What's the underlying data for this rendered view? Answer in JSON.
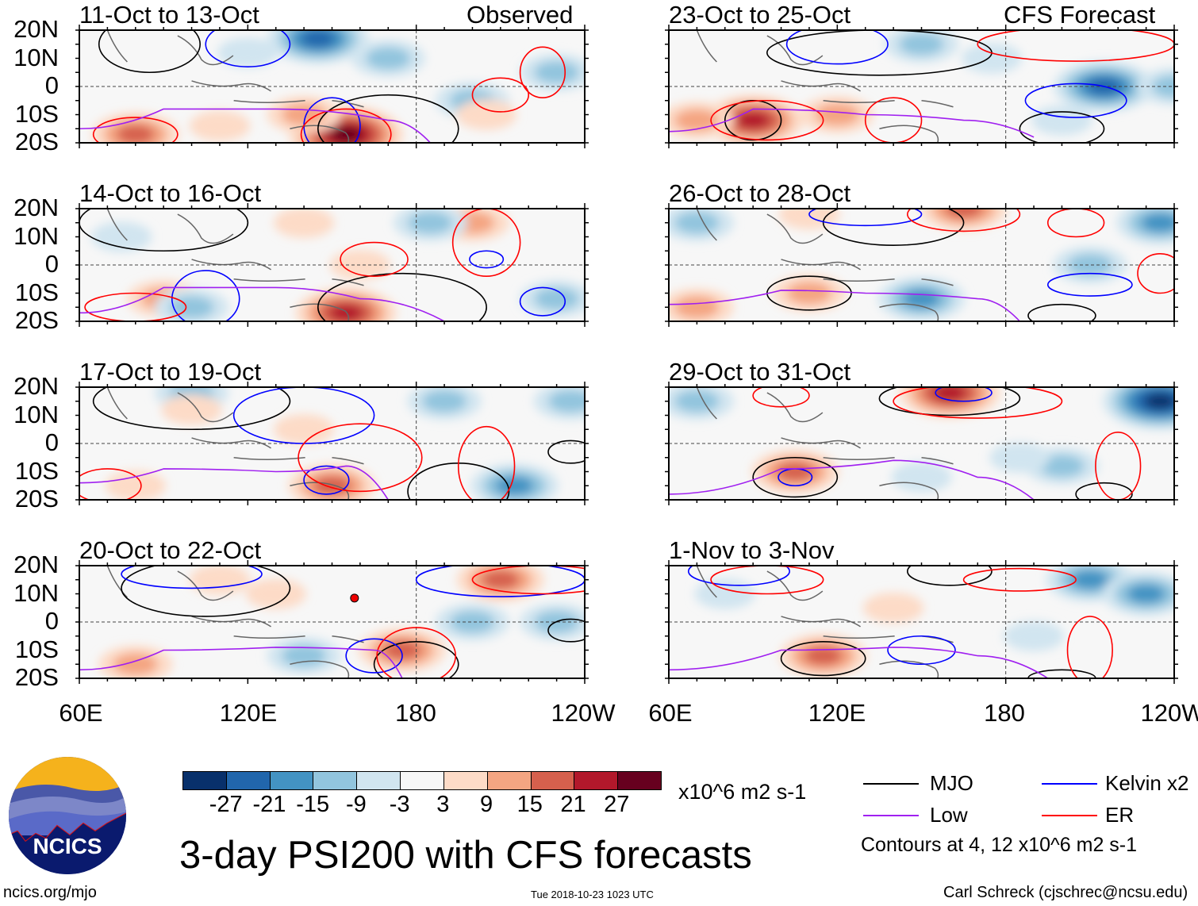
{
  "header": {
    "observed": "Observed",
    "forecast": "CFS Forecast"
  },
  "lat_labels": [
    "20N",
    "10N",
    "0",
    "10S",
    "20S"
  ],
  "lon_labels": [
    "60E",
    "120E",
    "180",
    "120W"
  ],
  "panels": [
    {
      "title": "11-Oct to 13-Oct",
      "anomalies": [
        [
          145,
          17,
          -21
        ],
        [
          170,
          10,
          -9
        ],
        [
          120,
          12,
          -3
        ],
        [
          155,
          -17,
          27
        ],
        [
          80,
          -17,
          15
        ],
        [
          140,
          -10,
          9
        ],
        [
          200,
          -5,
          -9
        ],
        [
          230,
          5,
          -9
        ],
        [
          205,
          -10,
          3
        ],
        [
          110,
          -14,
          3
        ]
      ],
      "contours": [
        [
          "MJO",
          170,
          -15,
          25,
          12
        ],
        [
          "MJO",
          85,
          15,
          18,
          10
        ],
        [
          "Kelvin x2",
          150,
          -14,
          10,
          10
        ],
        [
          "Kelvin x2",
          120,
          15,
          15,
          8
        ],
        [
          "ER",
          80,
          -17,
          15,
          6
        ],
        [
          "ER",
          155,
          -17,
          16,
          9
        ],
        [
          "ER",
          210,
          -3,
          10,
          6
        ],
        [
          "ER",
          225,
          5,
          8,
          9
        ]
      ],
      "low": [
        [
          60,
          -15
        ],
        [
          90,
          -8
        ],
        [
          130,
          -8
        ],
        [
          170,
          -12
        ],
        [
          185,
          -20
        ]
      ]
    },
    {
      "title": "14-Oct to 16-Oct",
      "anomalies": [
        [
          155,
          -17,
          21
        ],
        [
          90,
          -12,
          9
        ],
        [
          100,
          -15,
          -9
        ],
        [
          200,
          15,
          9
        ],
        [
          185,
          15,
          -9
        ],
        [
          75,
          10,
          -3
        ],
        [
          140,
          15,
          3
        ],
        [
          230,
          -12,
          -9
        ],
        [
          160,
          0,
          3
        ]
      ],
      "contours": [
        [
          "MJO",
          175,
          -15,
          30,
          12
        ],
        [
          "MJO",
          90,
          15,
          30,
          10
        ],
        [
          "Kelvin x2",
          105,
          -12,
          12,
          10
        ],
        [
          "Kelvin x2",
          205,
          2,
          6,
          3
        ],
        [
          "Kelvin x2",
          225,
          -13,
          8,
          5
        ],
        [
          "ER",
          205,
          8,
          12,
          12
        ],
        [
          "ER",
          165,
          2,
          12,
          6
        ],
        [
          "ER",
          80,
          -15,
          18,
          5
        ]
      ],
      "low": [
        [
          60,
          -17
        ],
        [
          90,
          -8
        ],
        [
          130,
          -8
        ],
        [
          160,
          -12
        ],
        [
          190,
          -20
        ]
      ]
    },
    {
      "title": "17-Oct to 19-Oct",
      "anomalies": [
        [
          150,
          -15,
          15
        ],
        [
          100,
          18,
          -9
        ],
        [
          190,
          15,
          -9
        ],
        [
          215,
          -15,
          -15
        ],
        [
          140,
          5,
          3
        ],
        [
          235,
          15,
          -9
        ],
        [
          80,
          -15,
          3
        ],
        [
          100,
          12,
          3
        ]
      ],
      "contours": [
        [
          "MJO",
          100,
          15,
          35,
          10
        ],
        [
          "MJO",
          195,
          -17,
          18,
          10
        ],
        [
          "MJO",
          235,
          -3,
          8,
          4
        ],
        [
          "Kelvin x2",
          140,
          10,
          25,
          10
        ],
        [
          "Kelvin x2",
          148,
          -13,
          8,
          5
        ],
        [
          "ER",
          160,
          -5,
          22,
          12
        ],
        [
          "ER",
          205,
          -8,
          10,
          14
        ],
        [
          "ER",
          70,
          -15,
          12,
          6
        ]
      ],
      "low": [
        [
          60,
          -14
        ],
        [
          90,
          -9
        ],
        [
          130,
          -10
        ],
        [
          155,
          -8
        ],
        [
          170,
          -20
        ]
      ]
    },
    {
      "title": "20-Oct to 22-Oct",
      "anomalies": [
        [
          80,
          -15,
          9
        ],
        [
          175,
          -10,
          15
        ],
        [
          140,
          -12,
          -9
        ],
        [
          210,
          15,
          15
        ],
        [
          200,
          0,
          -9
        ],
        [
          230,
          0,
          -9
        ],
        [
          130,
          10,
          3
        ],
        [
          110,
          15,
          3
        ]
      ],
      "contours": [
        [
          "MJO",
          105,
          12,
          30,
          10
        ],
        [
          "MJO",
          180,
          -15,
          15,
          8
        ],
        [
          "MJO",
          235,
          -3,
          8,
          4
        ],
        [
          "Kelvin x2",
          100,
          17,
          25,
          5
        ],
        [
          "Kelvin x2",
          165,
          -12,
          10,
          6
        ],
        [
          "Kelvin x2",
          210,
          15,
          30,
          6
        ],
        [
          "ER",
          180,
          -12,
          14,
          10
        ],
        [
          "ER",
          225,
          15,
          25,
          5
        ]
      ],
      "low": [
        [
          60,
          -17
        ],
        [
          90,
          -10
        ],
        [
          130,
          -9
        ],
        [
          165,
          -10
        ],
        [
          175,
          -20
        ]
      ]
    },
    {
      "title": "23-Oct to 25-Oct",
      "anomalies": [
        [
          90,
          -12,
          21
        ],
        [
          215,
          0,
          -21
        ],
        [
          150,
          15,
          -9
        ],
        [
          120,
          -10,
          9
        ],
        [
          240,
          0,
          -9
        ],
        [
          70,
          -12,
          9
        ],
        [
          200,
          -12,
          -3
        ],
        [
          175,
          10,
          -3
        ]
      ],
      "contours": [
        [
          "MJO",
          90,
          -12,
          10,
          7
        ],
        [
          "MJO",
          135,
          12,
          40,
          8
        ],
        [
          "MJo",
          200,
          -15,
          15,
          6
        ],
        [
          "Kelvin x2",
          120,
          15,
          18,
          7
        ],
        [
          "Kelvin x2",
          205,
          -5,
          18,
          6
        ],
        [
          "ER",
          95,
          -12,
          20,
          7
        ],
        [
          "ER",
          140,
          -12,
          10,
          8
        ],
        [
          "ER",
          205,
          15,
          35,
          6
        ]
      ],
      "low": [
        [
          60,
          -16
        ],
        [
          90,
          -8
        ],
        [
          130,
          -10
        ],
        [
          165,
          -12
        ],
        [
          190,
          -18
        ]
      ]
    },
    {
      "title": "26-Oct to 28-Oct",
      "anomalies": [
        [
          110,
          -10,
          9
        ],
        [
          150,
          -12,
          -15
        ],
        [
          70,
          15,
          -9
        ],
        [
          165,
          20,
          15
        ],
        [
          210,
          0,
          -9
        ],
        [
          235,
          15,
          -15
        ],
        [
          70,
          -15,
          9
        ],
        [
          110,
          18,
          3
        ]
      ],
      "contours": [
        [
          "MJO",
          110,
          -10,
          15,
          6
        ],
        [
          "MJO",
          140,
          15,
          25,
          8
        ],
        [
          "MJO",
          200,
          -18,
          12,
          4
        ],
        [
          "Kelvin x2",
          130,
          18,
          20,
          4
        ],
        [
          "Kelvin x2",
          210,
          -7,
          15,
          4
        ],
        [
          "ER",
          165,
          18,
          20,
          6
        ],
        [
          "ER",
          235,
          -3,
          8,
          7
        ],
        [
          "ER",
          205,
          15,
          10,
          5
        ]
      ],
      "low": [
        [
          60,
          -14
        ],
        [
          100,
          -9
        ],
        [
          130,
          -10
        ],
        [
          170,
          -12
        ],
        [
          185,
          -20
        ]
      ]
    },
    {
      "title": "29-Oct to 31-Oct",
      "anomalies": [
        [
          160,
          18,
          21
        ],
        [
          70,
          15,
          -9
        ],
        [
          105,
          -10,
          15
        ],
        [
          235,
          15,
          -27
        ],
        [
          200,
          -8,
          -9
        ],
        [
          150,
          -12,
          -3
        ],
        [
          185,
          -5,
          -3
        ]
      ],
      "contours": [
        [
          "MJO",
          105,
          -12,
          15,
          7
        ],
        [
          "MJO",
          160,
          16,
          25,
          6
        ],
        [
          "MJO",
          215,
          -18,
          10,
          4
        ],
        [
          "Kelvin x2",
          105,
          -12,
          6,
          3
        ],
        [
          "Kelvin x2",
          165,
          18,
          10,
          3
        ],
        [
          "ER",
          170,
          15,
          30,
          6
        ],
        [
          "ER",
          220,
          -8,
          8,
          12
        ],
        [
          "ER",
          100,
          17,
          10,
          4
        ]
      ],
      "low": [
        [
          60,
          -18
        ],
        [
          100,
          -9
        ],
        [
          140,
          -6
        ],
        [
          170,
          -12
        ],
        [
          190,
          -20
        ]
      ]
    },
    {
      "title": "1-Nov to 3-Nov",
      "anomalies": [
        [
          115,
          -12,
          15
        ],
        [
          210,
          15,
          -15
        ],
        [
          230,
          10,
          -15
        ],
        [
          140,
          5,
          3
        ],
        [
          80,
          10,
          -3
        ],
        [
          190,
          -5,
          -3
        ]
      ],
      "contours": [
        [
          "MJO",
          115,
          -13,
          15,
          6
        ],
        [
          "MJO",
          160,
          18,
          15,
          5
        ],
        [
          "MJO",
          200,
          -20,
          12,
          3
        ],
        [
          "Kelvin x2",
          85,
          18,
          18,
          5
        ],
        [
          "Kelvin x2",
          150,
          -10,
          12,
          5
        ],
        [
          "ER",
          210,
          -10,
          8,
          12
        ],
        [
          "ER",
          95,
          15,
          20,
          5
        ],
        [
          "ER",
          185,
          15,
          20,
          4
        ]
      ],
      "low": [
        [
          60,
          -17
        ],
        [
          100,
          -10
        ],
        [
          140,
          -9
        ],
        [
          170,
          -12
        ],
        [
          195,
          -20
        ]
      ]
    }
  ],
  "colorbar": {
    "colors": [
      "#08306b",
      "#2166ac",
      "#4393c3",
      "#92c5de",
      "#d1e5f0",
      "#f7f7f7",
      "#fddbc7",
      "#f4a582",
      "#d6604d",
      "#b2182b",
      "#67001f"
    ],
    "levels": [
      "-27",
      "-21",
      "-15",
      "-9",
      "-3",
      "3",
      "9",
      "15",
      "21",
      "27"
    ],
    "units": "x10^6 m2 s-1"
  },
  "legend": {
    "items": [
      {
        "label": "MJO",
        "color": "#000000"
      },
      {
        "label": "Low",
        "color": "#a020f0"
      },
      {
        "label": "Kelvin x2",
        "color": "#0000ff"
      },
      {
        "label": "ER",
        "color": "#ff0000"
      }
    ],
    "contours_note": "Contours at 4, 12 x10^6 m2 s-1"
  },
  "title": "3-day PSI200 with CFS forecasts",
  "logo_text": "NCICS",
  "footer": {
    "url": "ncics.org/mjo",
    "timestamp": "Tue 2018-10-23 1023 UTC",
    "author": "Carl Schreck (cjschrec@ncsu.edu)"
  }
}
